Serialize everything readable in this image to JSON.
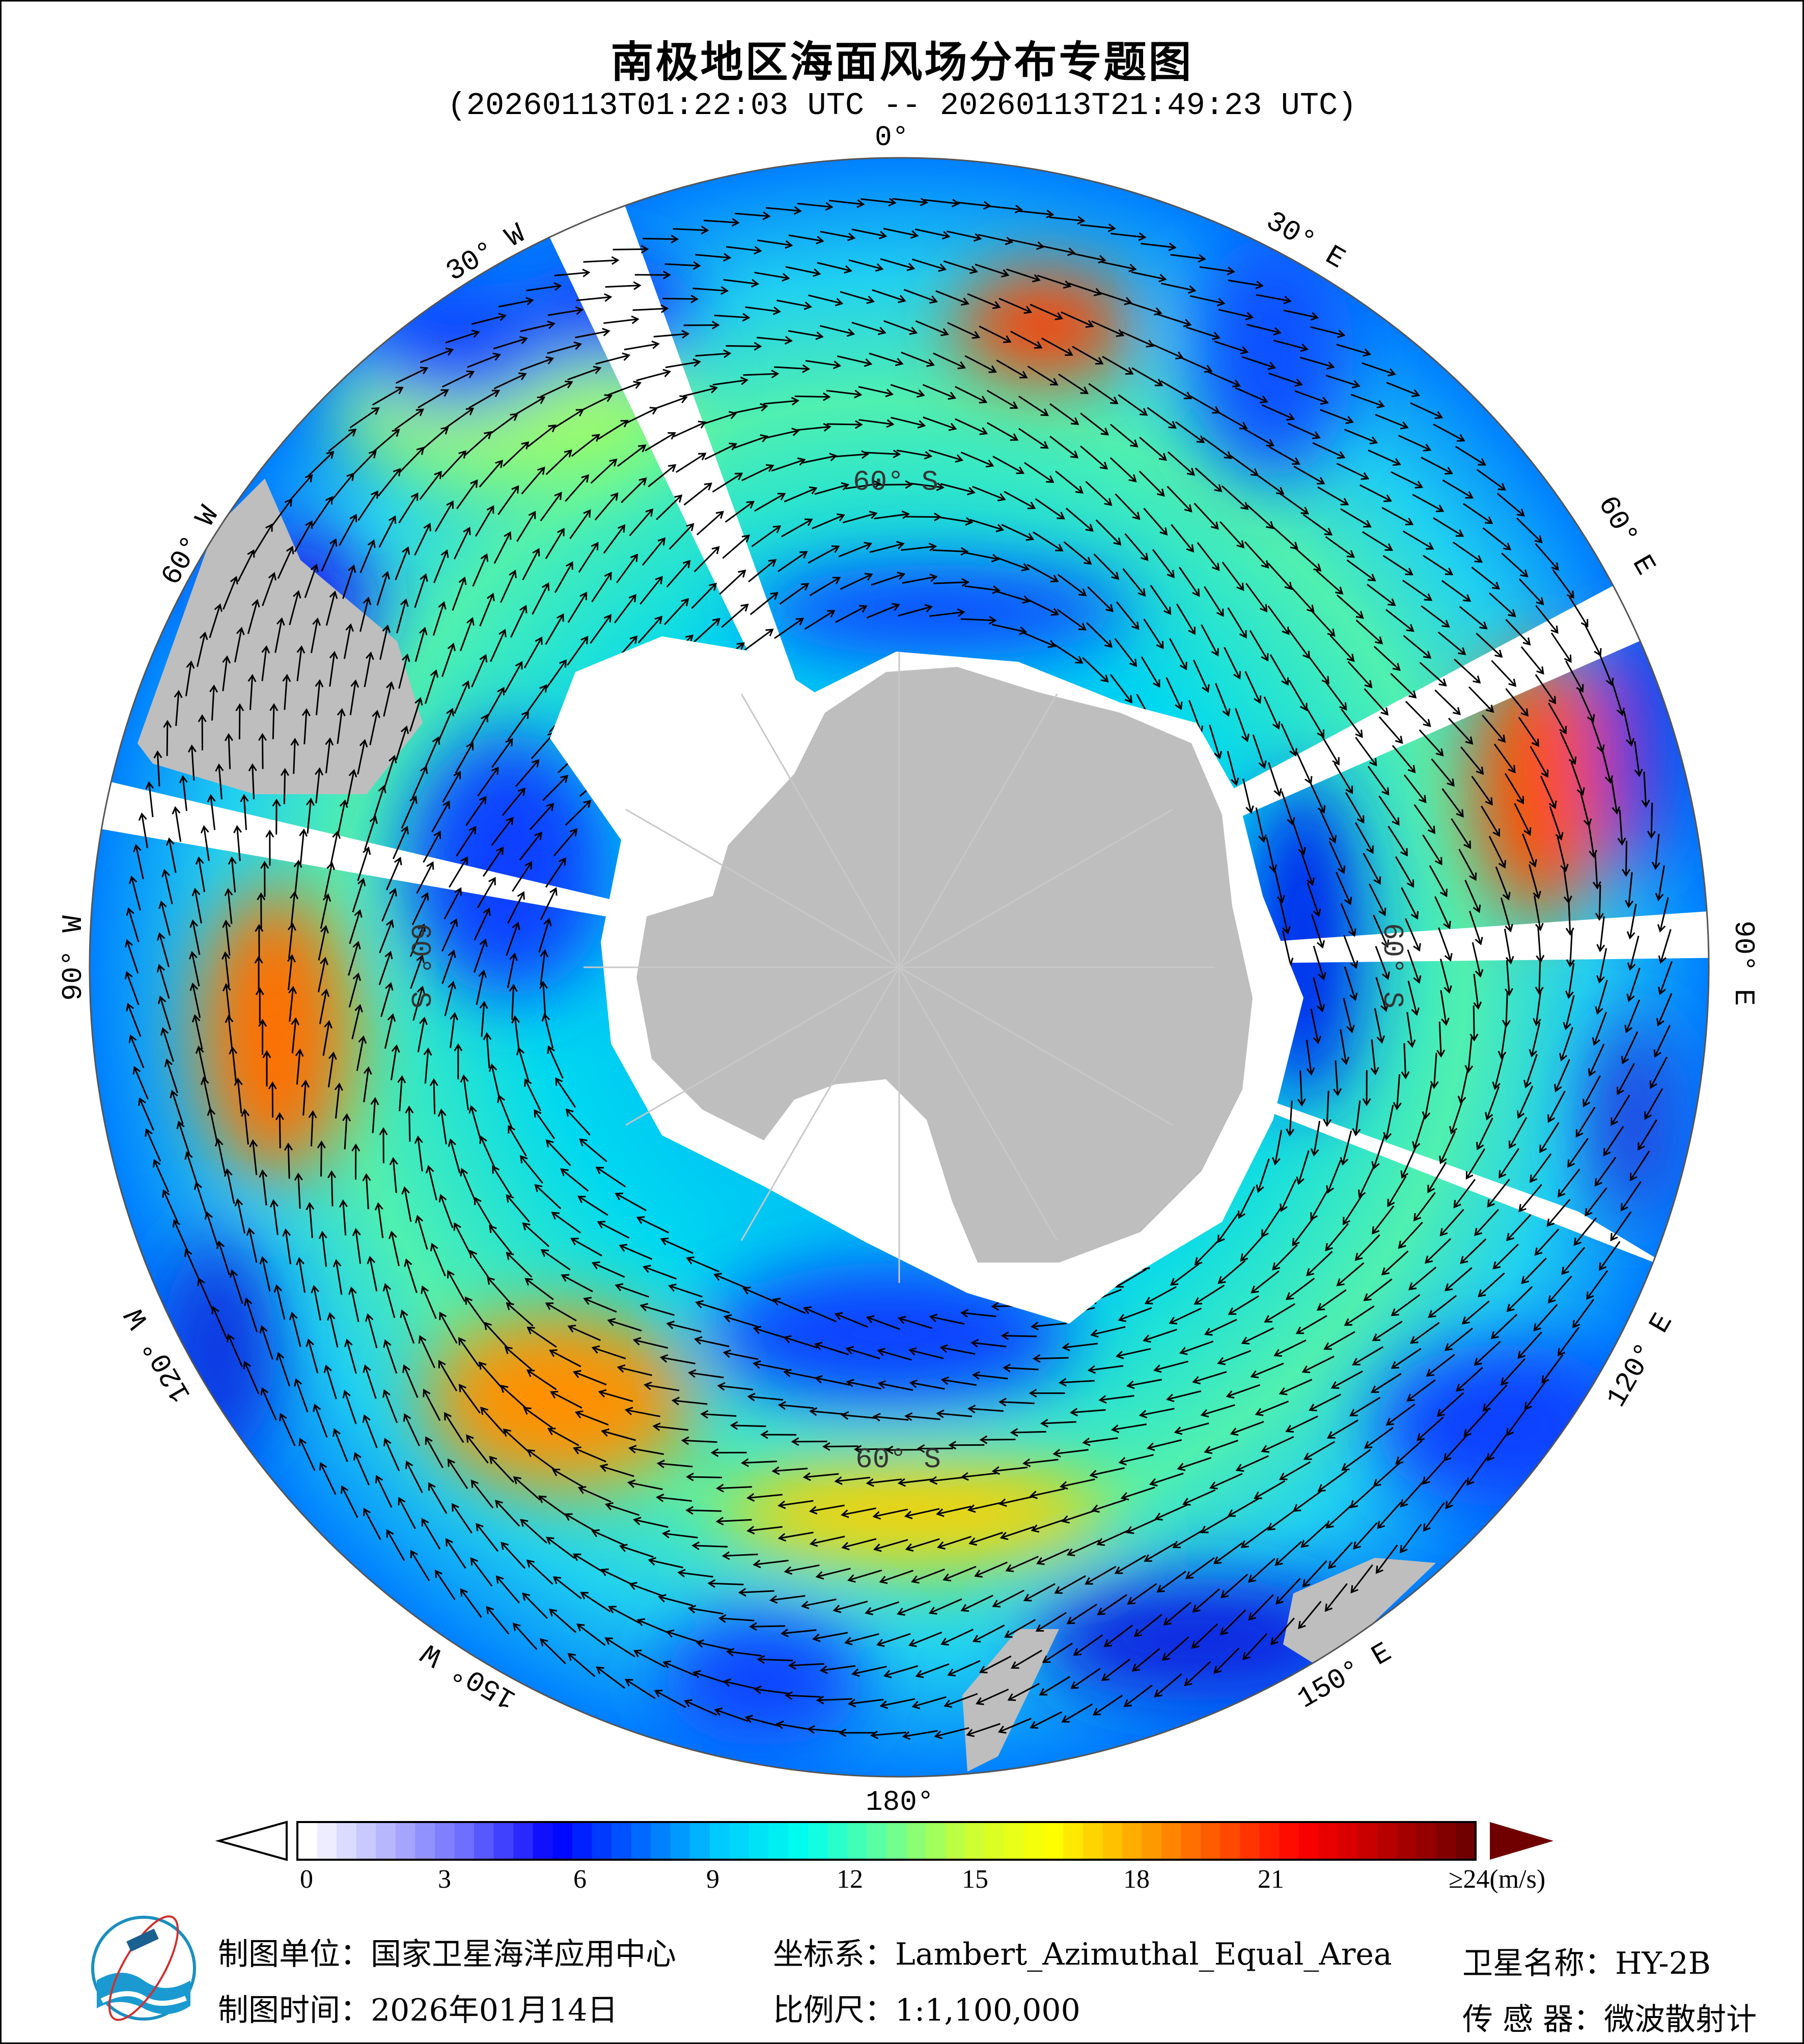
{
  "title": "南极地区海面风场分布专题图",
  "subtitle": "(20260113T01:22:03 UTC -- 20260113T21:49:23 UTC)",
  "map": {
    "projection_view": "south-polar",
    "land_color": "#bebebe",
    "sea_ice_color": "#ffffff",
    "longitude_labels": {
      "lon_0": "0°",
      "lon_30e": "30° E",
      "lon_60e": "60° E",
      "lon_90e": "90° E",
      "lon_120e": "120° E",
      "lon_150e": "150° E",
      "lon_180": "180°",
      "lon_150w": "150° W",
      "lon_120w": "120° W",
      "lon_90w": "90° W",
      "lon_60w": "60° W",
      "lon_30w": "30° W"
    },
    "latitude_labels": {
      "top": "60° S",
      "right": "60° S",
      "bottom": "60° S",
      "left": "60° S"
    }
  },
  "colorbar": {
    "ticks": [
      "0",
      "3",
      "6",
      "9",
      "12",
      "15",
      "18",
      "21",
      "≥24(m/s)"
    ],
    "min": 0,
    "max": 24,
    "unit": "m/s",
    "colormap": [
      "#ffffff",
      "#b3b3ff",
      "#6666ff",
      "#0000ff",
      "#0066ff",
      "#00ccff",
      "#00ffee",
      "#66ff99",
      "#ccff33",
      "#ffff00",
      "#ffaa00",
      "#ff5500",
      "#ff0000",
      "#bb0000",
      "#700000"
    ],
    "over_color": "#700000",
    "under_color": "#ffffff"
  },
  "footer": {
    "unit": "制图单位：国家卫星海洋应用中心",
    "date": "制图时间：2026年01月14日",
    "crs": "坐标系：Lambert_Azimuthal_Equal_Area",
    "scale": "比例尺：1:1,100,000",
    "satellite": "卫星名称：HY-2B",
    "sensor": "传 感 器：微波散射计"
  }
}
